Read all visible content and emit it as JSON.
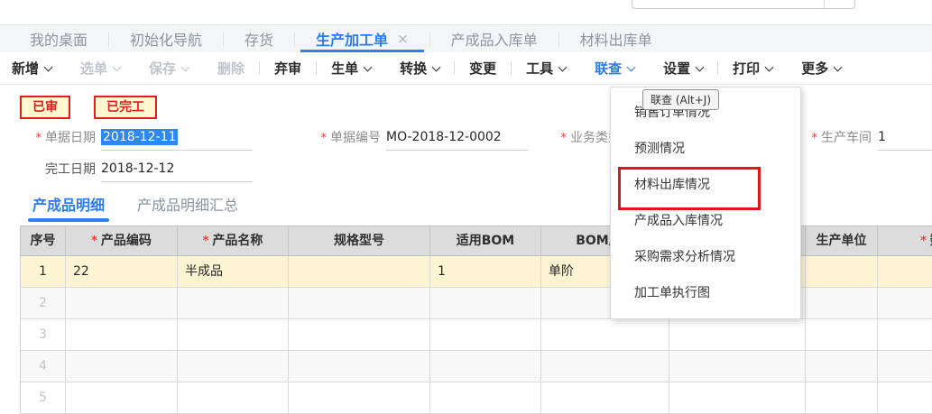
{
  "header": {
    "tabs": [
      {
        "label": "我的桌面",
        "active": false,
        "closable": false
      },
      {
        "label": "初始化导航",
        "active": false,
        "closable": false
      },
      {
        "label": "存货",
        "active": false,
        "closable": false
      },
      {
        "label": "生产加工单",
        "active": true,
        "closable": true
      },
      {
        "label": "产成品入库单",
        "active": false,
        "closable": false
      },
      {
        "label": "材料出库单",
        "active": false,
        "closable": false
      }
    ],
    "close_icon": "×"
  },
  "toolbar": {
    "items": [
      {
        "label": "新增",
        "chevron": true,
        "state": "normal",
        "divider_after": false
      },
      {
        "label": "选单",
        "chevron": true,
        "state": "disabled",
        "divider_after": false
      },
      {
        "label": "保存",
        "chevron": true,
        "state": "disabled",
        "divider_after": false
      },
      {
        "label": "删除",
        "chevron": false,
        "state": "disabled",
        "divider_after": true
      },
      {
        "label": "弃审",
        "chevron": false,
        "state": "normal",
        "divider_after": true
      },
      {
        "label": "生单",
        "chevron": true,
        "state": "normal",
        "divider_after": false
      },
      {
        "label": "转换",
        "chevron": true,
        "state": "normal",
        "divider_after": true
      },
      {
        "label": "变更",
        "chevron": false,
        "state": "normal",
        "divider_after": true
      },
      {
        "label": "工具",
        "chevron": true,
        "state": "normal",
        "divider_after": false
      },
      {
        "label": "联查",
        "chevron": true,
        "state": "active",
        "divider_after": false
      },
      {
        "label": "设置",
        "chevron": true,
        "state": "normal",
        "divider_after": true
      },
      {
        "label": "打印",
        "chevron": true,
        "state": "normal",
        "divider_after": false
      },
      {
        "label": "更多",
        "chevron": true,
        "state": "normal",
        "divider_after": false
      }
    ]
  },
  "status_badges": [
    "已审",
    "已完工"
  ],
  "form": {
    "fields": [
      {
        "id": "doc_date",
        "label": "单据日期",
        "required": true,
        "value": "2018-12-11",
        "selected": true,
        "underline": true
      },
      {
        "id": "finish_date",
        "label": "完工日期",
        "required": false,
        "value": "2018-12-12",
        "selected": false,
        "underline": true
      },
      {
        "id": "doc_no",
        "label": "单据编号",
        "required": true,
        "value": "MO-2018-12-0002",
        "selected": false,
        "underline": true
      },
      {
        "id": "biz_type",
        "label": "业务类型",
        "required": true,
        "value": "",
        "selected": false,
        "underline": false
      },
      {
        "id": "workshop",
        "label": "生产车间",
        "required": true,
        "value": "1",
        "selected": false,
        "underline": true
      }
    ]
  },
  "detail_tabs": [
    {
      "label": "产成品明细",
      "active": true
    },
    {
      "label": "产成品明细汇总",
      "active": false
    }
  ],
  "table": {
    "columns": [
      {
        "label": "序号",
        "required": false
      },
      {
        "label": "产品编码",
        "required": true
      },
      {
        "label": "产品名称",
        "required": true
      },
      {
        "label": "规格型号",
        "required": false
      },
      {
        "label": "适用BOM",
        "required": false
      },
      {
        "label": "BOM展开",
        "required": false
      },
      {
        "label": "",
        "required": false
      },
      {
        "label": "生产单位",
        "required": false
      },
      {
        "label": "数",
        "required": true
      }
    ],
    "rows": [
      [
        "1",
        "22",
        "半成品",
        "",
        "1",
        "单阶",
        "",
        "",
        ""
      ],
      [
        "2",
        "",
        "",
        "",
        "",
        "",
        "",
        "",
        ""
      ],
      [
        "3",
        "",
        "",
        "",
        "",
        "",
        "",
        "",
        ""
      ],
      [
        "4",
        "",
        "",
        "",
        "",
        "",
        "",
        "",
        ""
      ],
      [
        "5",
        "",
        "",
        "",
        "",
        "",
        "",
        "",
        ""
      ]
    ]
  },
  "context_menu": {
    "tooltip": "联查 (Alt+J)",
    "items": [
      "销售订单情况",
      "预测情况",
      "材料出库情况",
      "产成品入库情况",
      "采购需求分析情况",
      "加工单执行图"
    ],
    "highlighted_item": "材料出库情况"
  },
  "colors": {
    "accent_blue": "#2b7cf2",
    "selection_blue": "#2f88f2",
    "badge_red": "#e02020",
    "annotation_red": "#e01616",
    "row_highlight_yellow": "#fcf4d2",
    "table_header_gray": "#dcdcdc"
  }
}
